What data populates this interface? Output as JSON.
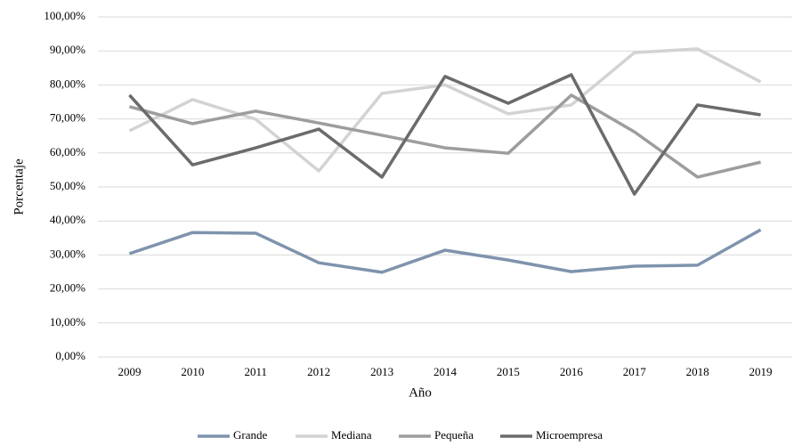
{
  "chart_data": {
    "type": "line",
    "x_label": "Año",
    "y_label": "Porcentaje",
    "categories": [
      "2009",
      "2010",
      "2011",
      "2012",
      "2013",
      "2014",
      "2015",
      "2016",
      "2017",
      "2018",
      "2019"
    ],
    "series": [
      {
        "name": "Grande",
        "color": "#7f93ad",
        "values": [
          30.4,
          36.6,
          36.4,
          27.7,
          24.9,
          31.4,
          28.5,
          25.1,
          26.7,
          27.0,
          37.4
        ]
      },
      {
        "name": "Mediana",
        "color": "#d3d3d3",
        "values": [
          66.5,
          75.7,
          69.9,
          54.7,
          77.5,
          80.0,
          71.5,
          74.1,
          89.5,
          90.6,
          80.9
        ]
      },
      {
        "name": "Pequeña",
        "color": "#9d9d9d",
        "values": [
          73.6,
          68.6,
          72.3,
          68.8,
          65.2,
          61.5,
          59.9,
          77.0,
          66.2,
          52.9,
          57.3
        ]
      },
      {
        "name": "Microempresa",
        "color": "#6b6b6b",
        "values": [
          77.0,
          56.5,
          61.5,
          67.0,
          52.9,
          82.5,
          74.6,
          83.0,
          47.9,
          74.1,
          71.2
        ]
      }
    ],
    "ylim": [
      0,
      100
    ],
    "yticks": [
      {
        "value": 0,
        "label": "0,00%"
      },
      {
        "value": 10,
        "label": "10,00%"
      },
      {
        "value": 20,
        "label": "20,00%"
      },
      {
        "value": 30,
        "label": "30,00%"
      },
      {
        "value": 40,
        "label": "40,00%"
      },
      {
        "value": 50,
        "label": "50,00%"
      },
      {
        "value": 60,
        "label": "60,00%"
      },
      {
        "value": 70,
        "label": "70,00%"
      },
      {
        "value": 80,
        "label": "80,00%"
      },
      {
        "value": 90,
        "label": "90,00%"
      },
      {
        "value": 100,
        "label": "100,00%"
      }
    ],
    "grid": true,
    "legend": "bottom"
  }
}
